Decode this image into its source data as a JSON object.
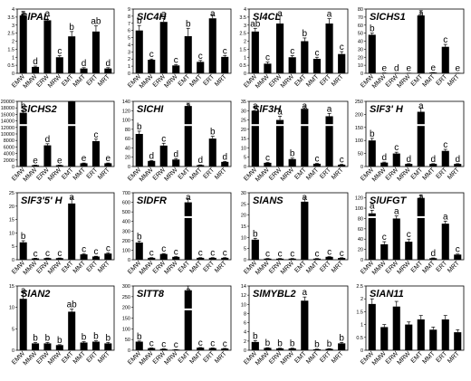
{
  "chart_data": [
    {
      "type": "bar",
      "title": "SlPAL",
      "categories": [
        "EMW",
        "MMW",
        "ERW",
        "MRW",
        "EMT",
        "MMT",
        "ERT",
        "MRT"
      ],
      "values": [
        3.6,
        0.4,
        3.3,
        1.0,
        2.3,
        0.3,
        2.6,
        0.3
      ],
      "errors": [
        0.25,
        0.05,
        0.25,
        0.1,
        0.3,
        0.05,
        0.35,
        0.05
      ],
      "letters": [
        "a",
        "d",
        "a",
        "c",
        "b",
        "d",
        "ab",
        "d"
      ],
      "ylim": [
        0,
        4
      ],
      "yticks": [
        0,
        0.5,
        1,
        1.5,
        2,
        2.5,
        3,
        3.5,
        4
      ],
      "break": false
    },
    {
      "type": "bar",
      "title": "SlC4H",
      "categories": [
        "EMW",
        "MMW",
        "ERW",
        "MRW",
        "EMT",
        "MMT",
        "ERT",
        "MRT"
      ],
      "values": [
        6.0,
        1.9,
        7.2,
        1.1,
        5.2,
        1.6,
        7.7,
        2.3
      ],
      "errors": [
        0.7,
        0.1,
        0.5,
        0.1,
        1.1,
        0.2,
        0.5,
        0.2
      ],
      "letters": [
        "b",
        "c",
        "a",
        "c",
        "b",
        "c",
        "a",
        "c"
      ],
      "ylim": [
        0,
        9
      ],
      "yticks": [
        0,
        1,
        2,
        3,
        4,
        5,
        6,
        7,
        8,
        9
      ],
      "break": false
    },
    {
      "type": "bar",
      "title": "Sl4CL",
      "categories": [
        "EMW",
        "MMW",
        "ERW",
        "MRW",
        "EMT",
        "MMT",
        "ERT",
        "MRT"
      ],
      "values": [
        2.6,
        0.6,
        3.1,
        1.0,
        2.0,
        0.9,
        3.1,
        1.2
      ],
      "errors": [
        0.2,
        0.1,
        0.5,
        0.1,
        0.2,
        0.1,
        0.3,
        0.15
      ],
      "letters": [
        "ab",
        "c",
        "a",
        "c",
        "b",
        "c",
        "a",
        "c"
      ],
      "ylim": [
        0,
        4
      ],
      "yticks": [
        0,
        0.5,
        1,
        1.5,
        2,
        2.5,
        3,
        3.5,
        4
      ],
      "break": false
    },
    {
      "type": "bar",
      "title": "SlCHS1",
      "categories": [
        "EMW",
        "MMW",
        "ERW",
        "MRW",
        "EMT",
        "MMT",
        "ERT",
        "MRT"
      ],
      "values": [
        48,
        0.5,
        0.3,
        0.3,
        72,
        1,
        33,
        0.3
      ],
      "errors": [
        2,
        0,
        0,
        0,
        6,
        0,
        3,
        0
      ],
      "letters": [
        "b",
        "e",
        "d",
        "e",
        "a",
        "e",
        "c",
        "e"
      ],
      "ylim": [
        0,
        80
      ],
      "yticks": [
        0,
        10,
        20,
        30,
        40,
        50,
        60,
        70,
        80
      ],
      "break": false
    },
    {
      "type": "bar",
      "title": "SlCHS2",
      "categories": [
        "EMW",
        "MMW",
        "ERW",
        "MRW",
        "EMT",
        "MMT",
        "ERT",
        "MRT"
      ],
      "values": [
        16500,
        400,
        6500,
        400,
        20500,
        1000,
        7800,
        1000
      ],
      "errors": [
        800,
        50,
        500,
        50,
        1000,
        80,
        600,
        80
      ],
      "letters": [
        "b",
        "e",
        "d",
        "e",
        "a",
        "e",
        "c",
        "e"
      ],
      "ylim": [
        0,
        20000
      ],
      "yticks": [
        0,
        2000,
        4000,
        6000,
        8000,
        10000,
        12000,
        14000,
        16000,
        18000,
        20000
      ],
      "break": true
    },
    {
      "type": "bar",
      "title": "SlCHI",
      "categories": [
        "EMW",
        "MMW",
        "ERW",
        "MRW",
        "EMT",
        "MMT",
        "ERT",
        "MRT"
      ],
      "values": [
        70,
        12,
        45,
        15,
        130,
        3,
        60,
        10
      ],
      "errors": [
        6,
        1,
        5,
        2,
        6,
        0.5,
        5,
        1
      ],
      "letters": [
        "b",
        "d",
        "c",
        "d",
        "a",
        "d",
        "b",
        "d"
      ],
      "ylim": [
        0,
        140
      ],
      "yticks": [
        0,
        20,
        40,
        60,
        80,
        100,
        120,
        140
      ],
      "break": true
    },
    {
      "type": "bar",
      "title": "SlF3H",
      "categories": [
        "EMW",
        "MMW",
        "ERW",
        "MRW",
        "EMT",
        "MMT",
        "ERT",
        "MRT"
      ],
      "values": [
        30,
        2,
        25,
        4,
        31,
        1.5,
        27,
        1
      ],
      "errors": [
        1.5,
        0.2,
        2,
        0.5,
        1.5,
        0.2,
        1.5,
        0.2
      ],
      "letters": [
        "a",
        "c",
        "a",
        "b",
        "a",
        "c",
        "a",
        "c"
      ],
      "ylim": [
        0,
        35
      ],
      "yticks": [
        0,
        5,
        10,
        15,
        20,
        25,
        30,
        35
      ],
      "break": true
    },
    {
      "type": "bar",
      "title": "SlF3' H",
      "categories": [
        "EMW",
        "MMW",
        "ERW",
        "MRW",
        "EMT",
        "MMT",
        "ERT",
        "MRT"
      ],
      "values": [
        100,
        15,
        50,
        10,
        210,
        10,
        60,
        10
      ],
      "errors": [
        8,
        2,
        5,
        1,
        15,
        1,
        6,
        1
      ],
      "letters": [
        "b",
        "d",
        "c",
        "d",
        "a",
        "d",
        "c",
        "d"
      ],
      "ylim": [
        0,
        250
      ],
      "yticks": [
        0,
        50,
        100,
        150,
        200,
        250
      ],
      "break": true
    },
    {
      "type": "bar",
      "title": "SlF3'5' H",
      "categories": [
        "EMW",
        "MMW",
        "ERW",
        "MRW",
        "EMT",
        "MMT",
        "ERT",
        "MRT"
      ],
      "values": [
        6.5,
        0.5,
        0.6,
        0.6,
        21,
        2,
        1.2,
        2.3
      ],
      "errors": [
        0.6,
        0.05,
        0.05,
        0.05,
        2,
        0.2,
        0.1,
        0.3
      ],
      "letters": [
        "b",
        "c",
        "c",
        "c",
        "a",
        "c",
        "c",
        "c"
      ],
      "ylim": [
        0,
        25
      ],
      "yticks": [
        0,
        5,
        10,
        15,
        20,
        25
      ],
      "break": false
    },
    {
      "type": "bar",
      "title": "SlDFR",
      "categories": [
        "EMW",
        "MMW",
        "ERW",
        "MRW",
        "EMT",
        "MMT",
        "ERT",
        "MRT"
      ],
      "values": [
        180,
        20,
        60,
        30,
        600,
        20,
        20,
        20
      ],
      "errors": [
        15,
        2,
        5,
        3,
        40,
        2,
        2,
        2
      ],
      "letters": [
        "b",
        "c",
        "c",
        "c",
        "a",
        "c",
        "c",
        "c"
      ],
      "ylim": [
        0,
        700
      ],
      "yticks": [
        0,
        100,
        200,
        300,
        400,
        500,
        600,
        700
      ],
      "break": true
    },
    {
      "type": "bar",
      "title": "SlANS",
      "categories": [
        "EMW",
        "MMW",
        "ERW",
        "MRW",
        "EMT",
        "MMT",
        "ERT",
        "MRT"
      ],
      "values": [
        9,
        0.5,
        0.5,
        0.5,
        26,
        0.5,
        1.3,
        0.8
      ],
      "errors": [
        0.6,
        0.05,
        0.05,
        0.05,
        2,
        0.05,
        0.1,
        0.1
      ],
      "letters": [
        "b",
        "c",
        "c",
        "c",
        "a",
        "c",
        "c",
        "c"
      ],
      "ylim": [
        0,
        30
      ],
      "yticks": [
        0,
        5,
        10,
        15,
        20,
        25,
        30
      ],
      "break": false
    },
    {
      "type": "bar",
      "title": "SlUFGT",
      "categories": [
        "EMW",
        "MMW",
        "ERW",
        "MRW",
        "EMT",
        "MMT",
        "ERT",
        "MRT"
      ],
      "values": [
        90,
        30,
        80,
        35,
        120,
        3,
        70,
        10
      ],
      "errors": [
        6,
        5,
        5,
        5,
        6,
        0.5,
        5,
        1
      ],
      "letters": [
        "a",
        "c",
        "a",
        "c",
        "a",
        "d",
        "a",
        "c"
      ],
      "ylim": [
        0,
        130
      ],
      "yticks": [
        0,
        20,
        40,
        60,
        80,
        100,
        120
      ],
      "break": true
    },
    {
      "type": "bar",
      "title": "SlAN2",
      "categories": [
        "EMW",
        "MMW",
        "ERW",
        "MRW",
        "EMT",
        "MMT",
        "ERT",
        "MRT"
      ],
      "values": [
        12,
        1.6,
        1.6,
        1.2,
        9,
        1.8,
        2.0,
        1.6
      ],
      "errors": [
        1.5,
        0.2,
        0.2,
        0.1,
        0.6,
        0.2,
        0.2,
        0.2
      ],
      "letters": [
        "a",
        "b",
        "b",
        "b",
        "ab",
        "b",
        "b",
        "b"
      ],
      "ylim": [
        0,
        15
      ],
      "yticks": [
        0,
        5,
        10,
        15
      ],
      "break": false
    },
    {
      "type": "bar",
      "title": "SlTT8",
      "categories": [
        "EMW",
        "MMW",
        "ERW",
        "MRW",
        "EMT",
        "MMT",
        "ERT",
        "MRT"
      ],
      "values": [
        40,
        10,
        6,
        3,
        280,
        12,
        10,
        8
      ],
      "errors": [
        3,
        1,
        1,
        0.5,
        20,
        1,
        1,
        1
      ],
      "letters": [
        "b",
        "c",
        "c",
        "c",
        "a",
        "c",
        "c",
        "c"
      ],
      "ylim": [
        0,
        300
      ],
      "yticks": [
        0,
        50,
        100,
        150,
        200,
        250,
        300
      ],
      "break": true
    },
    {
      "type": "bar",
      "title": "SlMYBL2",
      "categories": [
        "EMW",
        "MMW",
        "ERW",
        "MRW",
        "EMT",
        "MMT",
        "ERT",
        "MRT"
      ],
      "values": [
        1.8,
        0.5,
        0.4,
        0.4,
        10.8,
        0.2,
        0.3,
        1.5
      ],
      "errors": [
        0.3,
        0.05,
        0.05,
        0.05,
        0.8,
        0.05,
        0.05,
        0.2
      ],
      "letters": [
        "b",
        "b",
        "b",
        "b",
        "a",
        "b",
        "b",
        "b"
      ],
      "ylim": [
        0,
        14
      ],
      "yticks": [
        0,
        2,
        4,
        6,
        8,
        10,
        12,
        14
      ],
      "break": false
    },
    {
      "type": "bar",
      "title": "SlAN11",
      "categories": [
        "EMW",
        "MMW",
        "ERW",
        "MRW",
        "EMT",
        "MMT",
        "ERT",
        "MRT"
      ],
      "values": [
        1.8,
        0.9,
        1.7,
        1.0,
        1.2,
        0.8,
        1.2,
        0.7
      ],
      "errors": [
        0.2,
        0.1,
        0.2,
        0.1,
        0.15,
        0.1,
        0.15,
        0.1
      ],
      "letters": [
        "",
        "",
        "",
        "",
        "",
        "",
        "",
        ""
      ],
      "ylim": [
        0,
        2.5
      ],
      "yticks": [
        0,
        0.5,
        1,
        1.5,
        2,
        2.5
      ],
      "break": false
    }
  ]
}
